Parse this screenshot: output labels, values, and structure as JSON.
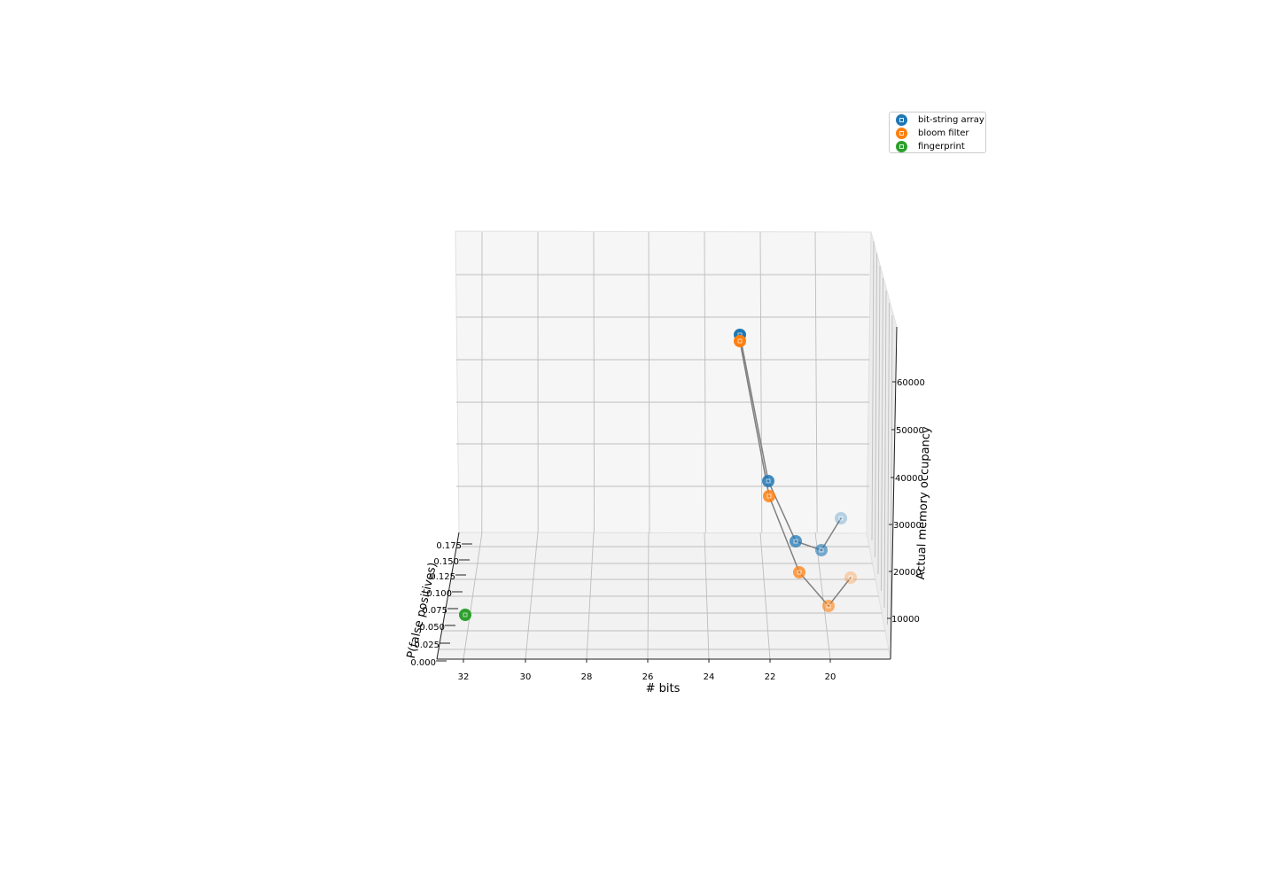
{
  "chart_data": {
    "type": "scatter",
    "projection": "3d",
    "grid": true,
    "legend_position": "top-right",
    "xlabel": "# bits",
    "ylabel": "P(false positives)",
    "zlabel": "Actual memory occupancy",
    "xticks": [
      "32",
      "30",
      "28",
      "26",
      "24",
      "22",
      "20"
    ],
    "yticks": [
      "0.000",
      "0.025",
      "0.050",
      "0.075",
      "0.100",
      "0.125",
      "0.150",
      "0.175"
    ],
    "zticks": [
      "10000",
      "20000",
      "30000",
      "40000",
      "50000",
      "60000"
    ],
    "series": [
      {
        "name": "bit-string array",
        "color": "#1f77b4",
        "connected": true,
        "points": [
          {
            "bits": 23,
            "p": 0.19,
            "memory": 66000
          },
          {
            "bits": 22,
            "p": 0.18,
            "memory": 35000
          },
          {
            "bits": 21,
            "p": 0.09,
            "memory": 33000
          },
          {
            "bits": 20,
            "p": 0.04,
            "memory": 33000
          },
          {
            "bits": 19,
            "p": 0.015,
            "memory": 39000
          }
        ]
      },
      {
        "name": "bloom filter",
        "color": "#ff7f0e",
        "connected": true,
        "points": [
          {
            "bits": 23,
            "p": 0.19,
            "memory": 65000
          },
          {
            "bits": 22,
            "p": 0.18,
            "memory": 32000
          },
          {
            "bits": 21,
            "p": 0.09,
            "memory": 25000
          },
          {
            "bits": 20,
            "p": 0.04,
            "memory": 17000
          },
          {
            "bits": 19,
            "p": 0.015,
            "memory": 25000
          }
        ]
      },
      {
        "name": "fingerprint",
        "color": "#2ca02c",
        "connected": false,
        "points": [
          {
            "bits": 32,
            "p": 0.0,
            "memory": 8000
          }
        ]
      }
    ]
  }
}
